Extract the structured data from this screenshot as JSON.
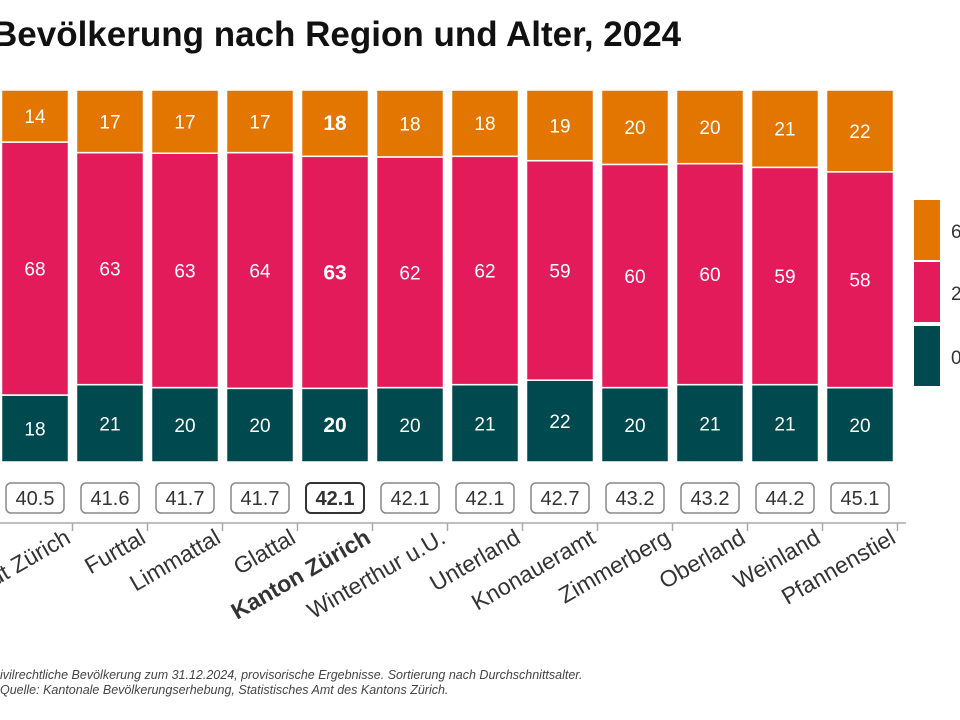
{
  "chart_data": {
    "type": "bar",
    "stacked": true,
    "normalized_percent": true,
    "title": "Bevölkerung nach Region und Alter, 2024",
    "categories": [
      "Stadt Zürich",
      "Furttal",
      "Limmattal",
      "Glattal",
      "Kanton Zürich",
      "Winterthur u.U.",
      "Unterland",
      "Knonaueramt",
      "Zimmerberg",
      "Oberland",
      "Weinland",
      "Pfannenstiel"
    ],
    "highlight": "Kanton Zürich",
    "series": [
      {
        "name": "0",
        "color": "#00494f",
        "values": [
          18,
          21,
          20,
          20,
          20,
          20,
          21,
          22,
          20,
          21,
          21,
          20
        ]
      },
      {
        "name": "2",
        "color": "#e31b5a",
        "values": [
          68,
          63,
          63,
          64,
          63,
          62,
          62,
          59,
          60,
          60,
          59,
          58
        ]
      },
      {
        "name": "6",
        "color": "#e27600",
        "values": [
          14,
          17,
          17,
          17,
          18,
          18,
          18,
          19,
          20,
          20,
          21,
          22
        ]
      }
    ],
    "average_age": [
      "40.5",
      "41.6",
      "41.7",
      "41.7",
      "42.1",
      "42.1",
      "42.1",
      "42.7",
      "43.2",
      "43.2",
      "44.2",
      "45.1"
    ],
    "legend_position": "right",
    "notes": [
      "ivilrechtliche Bevölkerung zum 31.12.2024, provisorische Ergebnisse. Sortierung nach Durchschnittsalter.",
      "Quelle: Kantonale Bevölkerungserhebung, Statistisches Amt des Kantons Zürich."
    ]
  },
  "axis_labels": [
    "Stadt Zürich",
    "Furttal",
    "Limmattal",
    "Glattal",
    "Kanton Zürich",
    "Winterthur u.U.",
    "Unterland",
    "Knonaueramt",
    "Zimmerberg",
    "Oberland",
    "Weinland",
    "Pfannenstiel"
  ]
}
